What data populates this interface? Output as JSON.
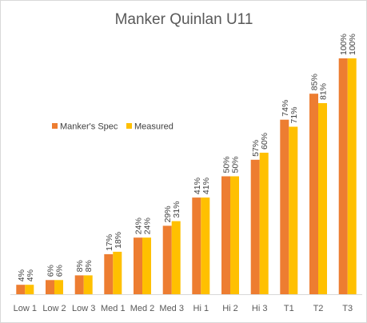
{
  "chart_data": {
    "type": "bar",
    "title": "Manker Quinlan U11",
    "xlabel": "",
    "ylabel": "",
    "ylim": [
      0,
      100
    ],
    "grid": false,
    "legend_position": "middle-left",
    "categories": [
      "Low 1",
      "Low 2",
      "Low 3",
      "Med 1",
      "Med 2",
      "Med 3",
      "Hi 1",
      "Hi 2",
      "Hi 3",
      "T1",
      "T2",
      "T3"
    ],
    "series": [
      {
        "name": "Manker's Spec",
        "color": "#ED7D31",
        "values": [
          4,
          6,
          8,
          17,
          24,
          29,
          41,
          50,
          57,
          74,
          85,
          100
        ],
        "labels": [
          "4%",
          "6%",
          "8%",
          "17%",
          "24%",
          "29%",
          "41%",
          "50%",
          "57%",
          "74%",
          "85%",
          "100%"
        ]
      },
      {
        "name": "Measured",
        "color": "#FFC000",
        "values": [
          4,
          6,
          8,
          18,
          24,
          31,
          41,
          50,
          60,
          71,
          81,
          100
        ],
        "labels": [
          "4%",
          "6%",
          "8%",
          "18%",
          "24%",
          "31%",
          "41%",
          "50%",
          "60%",
          "71%",
          "81%",
          "100%"
        ]
      }
    ]
  }
}
